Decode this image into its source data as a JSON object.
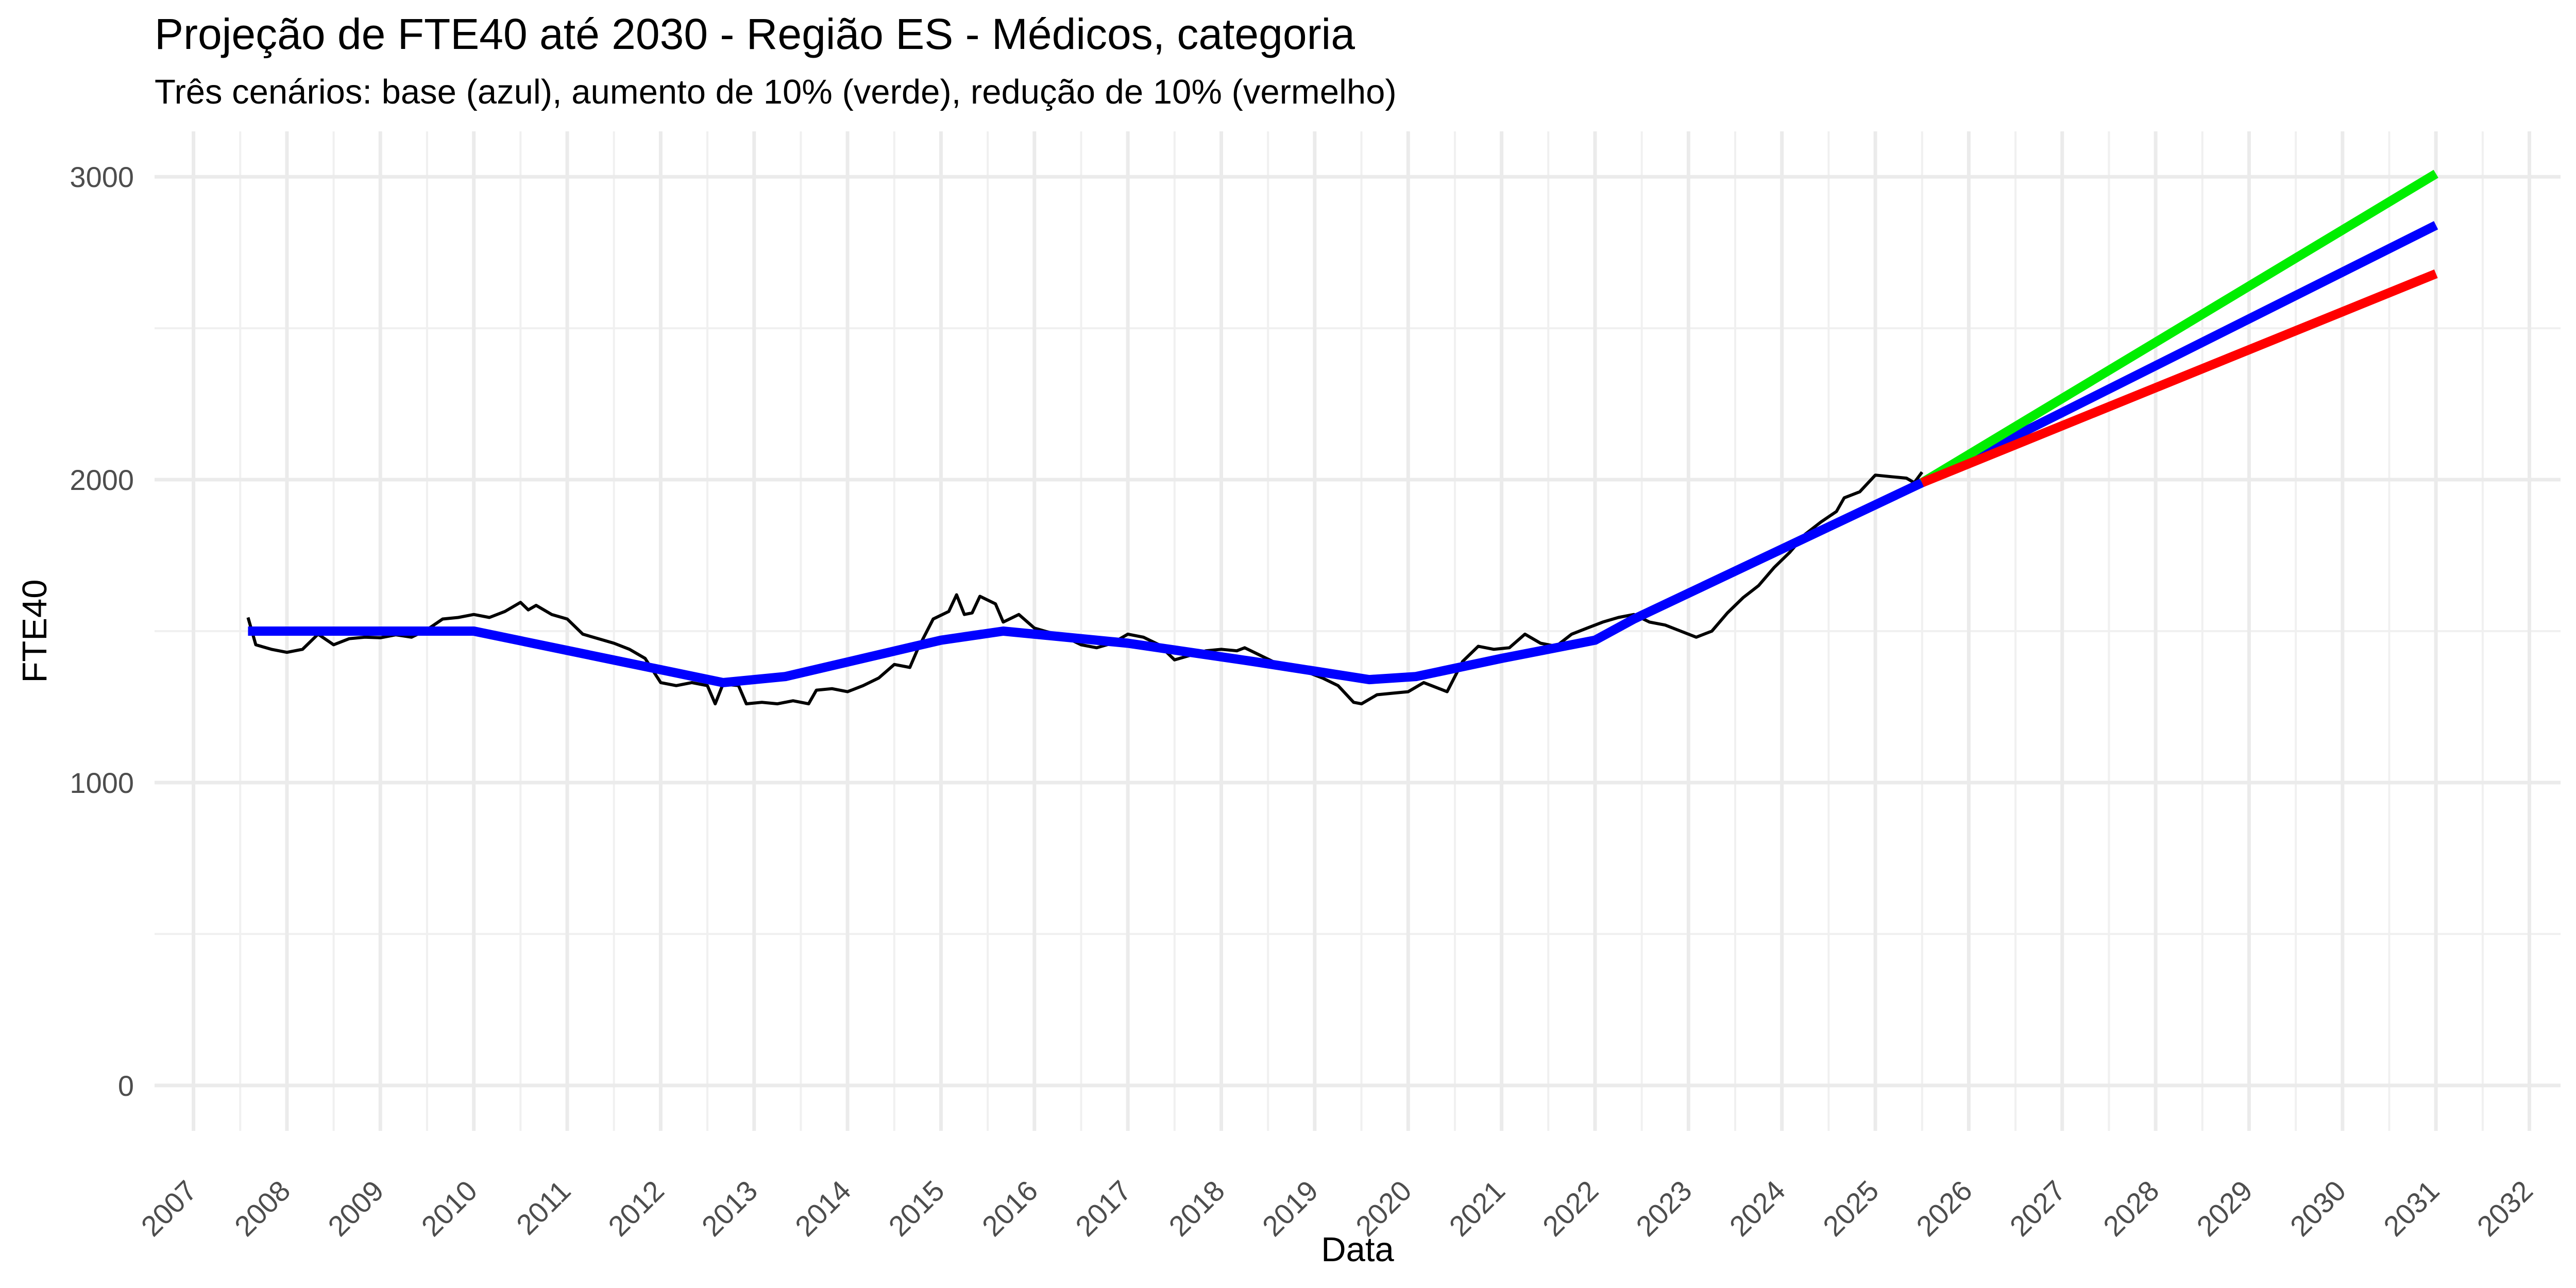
{
  "chart_data": {
    "type": "line",
    "title": "Projeção de FTE40 até 2030 - Região ES - Médicos, categoria",
    "subtitle": "Três cenários: base (azul), aumento de 10% (verde), redução de 10% (vermelho)",
    "xlabel": "Data",
    "ylabel": "FTE40",
    "x_axis": "date",
    "xlim": [
      "2006-08-01",
      "2032-05-01"
    ],
    "ylim": [
      -150,
      3150
    ],
    "x_ticks": [
      "2007",
      "2008",
      "2009",
      "2010",
      "2011",
      "2012",
      "2013",
      "2014",
      "2015",
      "2016",
      "2017",
      "2018",
      "2019",
      "2020",
      "2021",
      "2022",
      "2023",
      "2024",
      "2025",
      "2026",
      "2027",
      "2028",
      "2029",
      "2030",
      "2031",
      "2032"
    ],
    "y_ticks": [
      0,
      1000,
      2000,
      3000
    ],
    "grid": true,
    "legend": "none",
    "series": [
      {
        "color": "#000000",
        "stroke": "thin",
        "points": [
          [
            "2007-08-01",
            1545
          ],
          [
            "2007-09-01",
            1455
          ],
          [
            "2007-11-01",
            1440
          ],
          [
            "2008-01-01",
            1430
          ],
          [
            "2008-03-01",
            1440
          ],
          [
            "2008-05-01",
            1490
          ],
          [
            "2008-07-01",
            1455
          ],
          [
            "2008-09-01",
            1475
          ],
          [
            "2008-11-01",
            1480
          ],
          [
            "2009-01-01",
            1478
          ],
          [
            "2009-03-01",
            1488
          ],
          [
            "2009-05-01",
            1480
          ],
          [
            "2009-07-01",
            1505
          ],
          [
            "2009-09-01",
            1540
          ],
          [
            "2009-11-01",
            1545
          ],
          [
            "2010-01-01",
            1555
          ],
          [
            "2010-03-01",
            1545
          ],
          [
            "2010-05-01",
            1565
          ],
          [
            "2010-07-01",
            1595
          ],
          [
            "2010-08-01",
            1570
          ],
          [
            "2010-09-01",
            1585
          ],
          [
            "2010-11-01",
            1555
          ],
          [
            "2011-01-01",
            1540
          ],
          [
            "2011-03-01",
            1490
          ],
          [
            "2011-05-01",
            1475
          ],
          [
            "2011-07-01",
            1460
          ],
          [
            "2011-09-01",
            1440
          ],
          [
            "2011-11-01",
            1410
          ],
          [
            "2012-01-01",
            1330
          ],
          [
            "2012-03-01",
            1320
          ],
          [
            "2012-05-01",
            1330
          ],
          [
            "2012-07-01",
            1320
          ],
          [
            "2012-08-01",
            1260
          ],
          [
            "2012-09-01",
            1325
          ],
          [
            "2012-11-01",
            1320
          ],
          [
            "2012-12-01",
            1260
          ],
          [
            "2013-02-01",
            1265
          ],
          [
            "2013-04-01",
            1260
          ],
          [
            "2013-06-01",
            1270
          ],
          [
            "2013-08-01",
            1260
          ],
          [
            "2013-09-01",
            1305
          ],
          [
            "2013-11-01",
            1310
          ],
          [
            "2014-01-01",
            1300
          ],
          [
            "2014-03-01",
            1320
          ],
          [
            "2014-05-01",
            1345
          ],
          [
            "2014-07-01",
            1390
          ],
          [
            "2014-09-01",
            1380
          ],
          [
            "2014-10-01",
            1440
          ],
          [
            "2014-12-01",
            1540
          ],
          [
            "2015-02-01",
            1565
          ],
          [
            "2015-03-01",
            1620
          ],
          [
            "2015-04-01",
            1555
          ],
          [
            "2015-05-01",
            1560
          ],
          [
            "2015-06-01",
            1615
          ],
          [
            "2015-08-01",
            1590
          ],
          [
            "2015-09-01",
            1530
          ],
          [
            "2015-11-01",
            1555
          ],
          [
            "2016-01-01",
            1510
          ],
          [
            "2016-03-01",
            1495
          ],
          [
            "2016-05-01",
            1480
          ],
          [
            "2016-07-01",
            1455
          ],
          [
            "2016-09-01",
            1445
          ],
          [
            "2016-11-01",
            1460
          ],
          [
            "2017-01-01",
            1490
          ],
          [
            "2017-03-01",
            1480
          ],
          [
            "2017-05-01",
            1455
          ],
          [
            "2017-07-01",
            1405
          ],
          [
            "2017-09-01",
            1420
          ],
          [
            "2017-11-01",
            1435
          ],
          [
            "2018-01-01",
            1440
          ],
          [
            "2018-03-01",
            1435
          ],
          [
            "2018-04-01",
            1445
          ],
          [
            "2018-06-01",
            1420
          ],
          [
            "2018-08-01",
            1395
          ],
          [
            "2018-10-01",
            1380
          ],
          [
            "2018-12-01",
            1365
          ],
          [
            "2019-02-01",
            1345
          ],
          [
            "2019-04-01",
            1320
          ],
          [
            "2019-06-01",
            1265
          ],
          [
            "2019-07-01",
            1260
          ],
          [
            "2019-09-01",
            1290
          ],
          [
            "2019-11-01",
            1295
          ],
          [
            "2020-01-01",
            1300
          ],
          [
            "2020-03-01",
            1330
          ],
          [
            "2020-05-01",
            1310
          ],
          [
            "2020-06-01",
            1300
          ],
          [
            "2020-08-01",
            1400
          ],
          [
            "2020-10-01",
            1450
          ],
          [
            "2020-12-01",
            1440
          ],
          [
            "2021-02-01",
            1445
          ],
          [
            "2021-04-01",
            1490
          ],
          [
            "2021-06-01",
            1460
          ],
          [
            "2021-08-01",
            1450
          ],
          [
            "2021-10-01",
            1490
          ],
          [
            "2021-12-01",
            1510
          ],
          [
            "2022-02-01",
            1530
          ],
          [
            "2022-04-01",
            1545
          ],
          [
            "2022-06-01",
            1555
          ],
          [
            "2022-08-01",
            1530
          ],
          [
            "2022-10-01",
            1520
          ],
          [
            "2022-12-01",
            1500
          ],
          [
            "2023-02-01",
            1480
          ],
          [
            "2023-04-01",
            1500
          ],
          [
            "2023-06-01",
            1560
          ],
          [
            "2023-08-01",
            1610
          ],
          [
            "2023-10-01",
            1650
          ],
          [
            "2023-12-01",
            1710
          ],
          [
            "2024-02-01",
            1760
          ],
          [
            "2024-04-01",
            1820
          ],
          [
            "2024-06-01",
            1860
          ],
          [
            "2024-08-01",
            1895
          ],
          [
            "2024-09-01",
            1940
          ],
          [
            "2024-11-01",
            1960
          ],
          [
            "2025-01-01",
            2015
          ],
          [
            "2025-03-01",
            2010
          ],
          [
            "2025-05-01",
            2005
          ],
          [
            "2025-06-01",
            1990
          ],
          [
            "2025-07-01",
            2025
          ]
        ]
      },
      {
        "color": "#0000ff",
        "stroke": "thick",
        "points": [
          [
            "2007-08-01",
            1500
          ],
          [
            "2010-01-01",
            1500
          ],
          [
            "2012-09-01",
            1330
          ],
          [
            "2013-05-01",
            1350
          ],
          [
            "2015-01-01",
            1470
          ],
          [
            "2015-09-01",
            1500
          ],
          [
            "2017-01-01",
            1460
          ],
          [
            "2018-05-01",
            1400
          ],
          [
            "2019-08-01",
            1340
          ],
          [
            "2020-02-01",
            1350
          ],
          [
            "2021-01-01",
            1410
          ],
          [
            "2022-01-01",
            1470
          ],
          [
            "2022-06-01",
            1540
          ],
          [
            "2025-07-01",
            1990
          ],
          [
            "2031-01-01",
            2840
          ]
        ]
      },
      {
        "color": "#00ee00",
        "stroke": "thick",
        "points": [
          [
            "2025-07-01",
            1990
          ],
          [
            "2031-01-01",
            3010
          ]
        ]
      },
      {
        "color": "#ff0000",
        "stroke": "thick",
        "points": [
          [
            "2025-07-01",
            1990
          ],
          [
            "2031-01-01",
            2680
          ]
        ]
      }
    ]
  }
}
